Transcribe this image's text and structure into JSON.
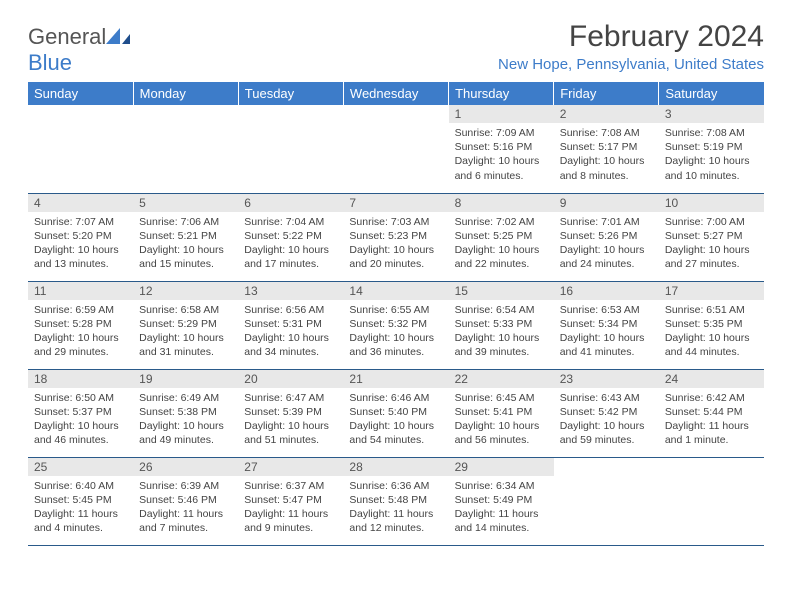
{
  "logo": {
    "text1": "General",
    "text2": "Blue"
  },
  "title": "February 2024",
  "location": "New Hope, Pennsylvania, United States",
  "colors": {
    "header_bg": "#3d7cc9",
    "header_text": "#ffffff",
    "daynum_bg": "#e8e8e8",
    "body_text": "#444444",
    "accent": "#3d7cc9",
    "row_border": "#2a5a8a"
  },
  "fonts": {
    "title_size": 30,
    "location_size": 15,
    "dayheader_size": 13,
    "body_size": 10.5
  },
  "day_headers": [
    "Sunday",
    "Monday",
    "Tuesday",
    "Wednesday",
    "Thursday",
    "Friday",
    "Saturday"
  ],
  "weeks": [
    [
      null,
      null,
      null,
      null,
      {
        "n": "1",
        "sunrise": "7:09 AM",
        "sunset": "5:16 PM",
        "daylight": "10 hours and 6 minutes."
      },
      {
        "n": "2",
        "sunrise": "7:08 AM",
        "sunset": "5:17 PM",
        "daylight": "10 hours and 8 minutes."
      },
      {
        "n": "3",
        "sunrise": "7:08 AM",
        "sunset": "5:19 PM",
        "daylight": "10 hours and 10 minutes."
      }
    ],
    [
      {
        "n": "4",
        "sunrise": "7:07 AM",
        "sunset": "5:20 PM",
        "daylight": "10 hours and 13 minutes."
      },
      {
        "n": "5",
        "sunrise": "7:06 AM",
        "sunset": "5:21 PM",
        "daylight": "10 hours and 15 minutes."
      },
      {
        "n": "6",
        "sunrise": "7:04 AM",
        "sunset": "5:22 PM",
        "daylight": "10 hours and 17 minutes."
      },
      {
        "n": "7",
        "sunrise": "7:03 AM",
        "sunset": "5:23 PM",
        "daylight": "10 hours and 20 minutes."
      },
      {
        "n": "8",
        "sunrise": "7:02 AM",
        "sunset": "5:25 PM",
        "daylight": "10 hours and 22 minutes."
      },
      {
        "n": "9",
        "sunrise": "7:01 AM",
        "sunset": "5:26 PM",
        "daylight": "10 hours and 24 minutes."
      },
      {
        "n": "10",
        "sunrise": "7:00 AM",
        "sunset": "5:27 PM",
        "daylight": "10 hours and 27 minutes."
      }
    ],
    [
      {
        "n": "11",
        "sunrise": "6:59 AM",
        "sunset": "5:28 PM",
        "daylight": "10 hours and 29 minutes."
      },
      {
        "n": "12",
        "sunrise": "6:58 AM",
        "sunset": "5:29 PM",
        "daylight": "10 hours and 31 minutes."
      },
      {
        "n": "13",
        "sunrise": "6:56 AM",
        "sunset": "5:31 PM",
        "daylight": "10 hours and 34 minutes."
      },
      {
        "n": "14",
        "sunrise": "6:55 AM",
        "sunset": "5:32 PM",
        "daylight": "10 hours and 36 minutes."
      },
      {
        "n": "15",
        "sunrise": "6:54 AM",
        "sunset": "5:33 PM",
        "daylight": "10 hours and 39 minutes."
      },
      {
        "n": "16",
        "sunrise": "6:53 AM",
        "sunset": "5:34 PM",
        "daylight": "10 hours and 41 minutes."
      },
      {
        "n": "17",
        "sunrise": "6:51 AM",
        "sunset": "5:35 PM",
        "daylight": "10 hours and 44 minutes."
      }
    ],
    [
      {
        "n": "18",
        "sunrise": "6:50 AM",
        "sunset": "5:37 PM",
        "daylight": "10 hours and 46 minutes."
      },
      {
        "n": "19",
        "sunrise": "6:49 AM",
        "sunset": "5:38 PM",
        "daylight": "10 hours and 49 minutes."
      },
      {
        "n": "20",
        "sunrise": "6:47 AM",
        "sunset": "5:39 PM",
        "daylight": "10 hours and 51 minutes."
      },
      {
        "n": "21",
        "sunrise": "6:46 AM",
        "sunset": "5:40 PM",
        "daylight": "10 hours and 54 minutes."
      },
      {
        "n": "22",
        "sunrise": "6:45 AM",
        "sunset": "5:41 PM",
        "daylight": "10 hours and 56 minutes."
      },
      {
        "n": "23",
        "sunrise": "6:43 AM",
        "sunset": "5:42 PM",
        "daylight": "10 hours and 59 minutes."
      },
      {
        "n": "24",
        "sunrise": "6:42 AM",
        "sunset": "5:44 PM",
        "daylight": "11 hours and 1 minute."
      }
    ],
    [
      {
        "n": "25",
        "sunrise": "6:40 AM",
        "sunset": "5:45 PM",
        "daylight": "11 hours and 4 minutes."
      },
      {
        "n": "26",
        "sunrise": "6:39 AM",
        "sunset": "5:46 PM",
        "daylight": "11 hours and 7 minutes."
      },
      {
        "n": "27",
        "sunrise": "6:37 AM",
        "sunset": "5:47 PM",
        "daylight": "11 hours and 9 minutes."
      },
      {
        "n": "28",
        "sunrise": "6:36 AM",
        "sunset": "5:48 PM",
        "daylight": "11 hours and 12 minutes."
      },
      {
        "n": "29",
        "sunrise": "6:34 AM",
        "sunset": "5:49 PM",
        "daylight": "11 hours and 14 minutes."
      },
      null,
      null
    ]
  ],
  "labels": {
    "sunrise": "Sunrise:",
    "sunset": "Sunset:",
    "daylight": "Daylight:"
  }
}
